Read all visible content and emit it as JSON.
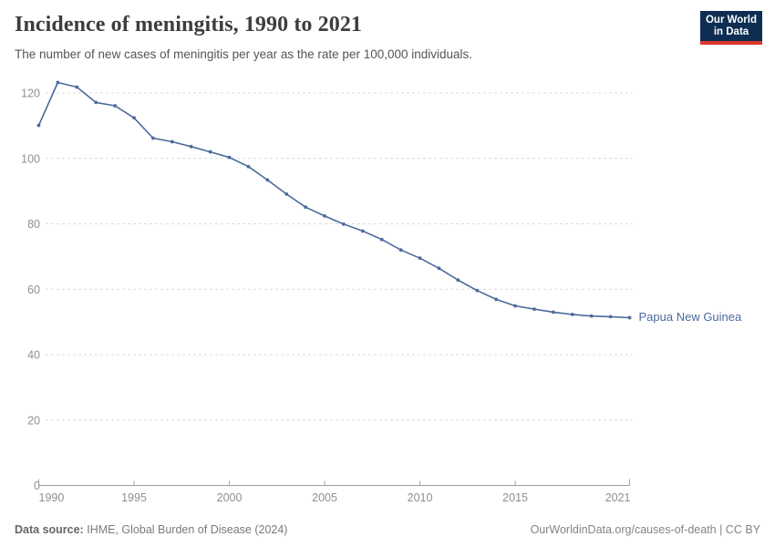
{
  "header": {
    "title": "Incidence of meningitis, 1990 to 2021",
    "subtitle": "The number of new cases of meningitis per year as the rate per 100,000 individuals."
  },
  "logo": {
    "line1": "Our World",
    "line2": "in Data",
    "bg_color": "#0d2e52",
    "stripe_color": "#dc352d"
  },
  "chart_data": {
    "type": "line",
    "title": "Incidence of meningitis, 1990 to 2021",
    "x": [
      1990,
      1991,
      1992,
      1993,
      1994,
      1995,
      1996,
      1997,
      1998,
      1999,
      2000,
      2001,
      2002,
      2003,
      2004,
      2005,
      2006,
      2007,
      2008,
      2009,
      2010,
      2011,
      2012,
      2013,
      2014,
      2015,
      2016,
      2017,
      2018,
      2019,
      2020,
      2021
    ],
    "series": [
      {
        "name": "Papua New Guinea",
        "color": "#4c6a9c",
        "values": [
          110.1,
          123.2,
          121.8,
          117.1,
          116.1,
          112.4,
          106.2,
          105.1,
          103.6,
          102.0,
          100.3,
          97.5,
          93.4,
          89.1,
          85.1,
          82.4,
          79.9,
          77.8,
          75.2,
          72.0,
          69.5,
          66.4,
          62.8,
          59.6,
          56.9,
          54.9,
          53.9,
          53.0,
          52.3,
          51.8,
          51.6,
          51.3
        ]
      }
    ],
    "xlabel": "",
    "ylabel": "",
    "ylim": [
      0,
      120
    ],
    "yticks": [
      0,
      20,
      40,
      60,
      80,
      100,
      120
    ],
    "xticks": [
      1990,
      1995,
      2000,
      2005,
      2010,
      2015,
      2021
    ],
    "grid": "horizontal-dashed",
    "legend_position": "end-of-line-label",
    "axis_color": "#a0a0a0",
    "grid_color": "#dcdcdc",
    "tick_label_color": "#8f8f8f"
  },
  "footer": {
    "source_label": "Data source:",
    "source_text": "IHME, Global Burden of Disease (2024)",
    "license_text": "OurWorldinData.org/causes-of-death | CC BY"
  }
}
